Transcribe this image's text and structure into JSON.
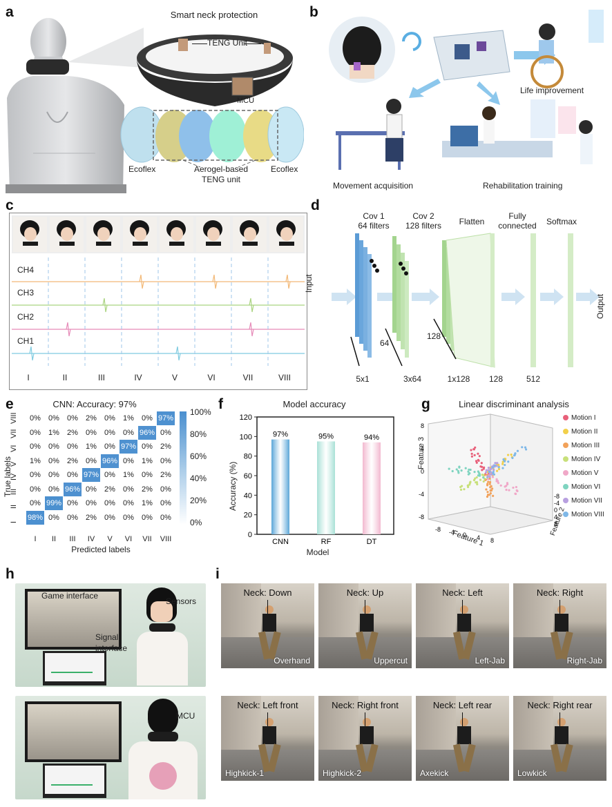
{
  "panel_labels": {
    "a": "a",
    "b": "b",
    "c": "c",
    "d": "d",
    "e": "e",
    "f": "f",
    "g": "g",
    "h": "h",
    "i": "i"
  },
  "panel_a": {
    "title": "Smart neck protection",
    "teng_unit": "TENG Unit",
    "mcu": "MCU",
    "ecoflex_left": "Ecoflex",
    "ecoflex_right": "Ecoflex",
    "aerogel_line1": "Aerogel-based",
    "aerogel_line2": "TENG unit"
  },
  "panel_b": {
    "life": "Life improvement",
    "movement": "Movement acquisition",
    "rehab": "Rehabilitation training"
  },
  "panel_c": {
    "channels": [
      "CH4",
      "CH3",
      "CH2",
      "CH1"
    ],
    "motions": [
      "I",
      "II",
      "III",
      "IV",
      "V",
      "VI",
      "VII",
      "VIII"
    ],
    "colors": [
      "#f2b877",
      "#a9d37f",
      "#e68ab8",
      "#7fcbe0"
    ]
  },
  "panel_d": {
    "input": "Input",
    "output": "Output",
    "layers": [
      "Cov 1",
      "64 filters",
      "Cov 2",
      "128 filters",
      "Flatten",
      "Fully",
      "connected",
      "Softmax"
    ],
    "dims": [
      "5x1",
      "3x64",
      "1x128",
      "128",
      "512"
    ],
    "side_dims": [
      "64",
      "128"
    ]
  },
  "panel_e": {
    "title": "CNN:  Accuracy: 97%",
    "ylabel": "True labels",
    "xlabel": "Predicted labels",
    "labels": [
      "I",
      "II",
      "III",
      "IV",
      "V",
      "VI",
      "VII",
      "VIII"
    ],
    "colorbar": [
      "100%",
      "80%",
      "60%",
      "40%",
      "20%",
      "0%"
    ]
  },
  "panel_f": {
    "title": "Model accuracy",
    "ylabel": "Accuracy (%)",
    "xlabel": "Model",
    "yticks": [
      "0",
      "20",
      "40",
      "60",
      "80",
      "100",
      "120"
    ]
  },
  "panel_g": {
    "title": "Linear discriminant analysis",
    "feature1": "Feature 1",
    "feature2": "Feature 2",
    "feature3": "Feature 3",
    "motions": [
      "Motion I",
      "Motion II",
      "Motion III",
      "Motion IV",
      "Motion V",
      "Motion VI",
      "Motion VII",
      "Motion VIII"
    ],
    "colors": [
      "#e8607a",
      "#f2d04a",
      "#f2a25a",
      "#c8e07a",
      "#f0a8c8",
      "#7fd4c0",
      "#b8a0e0",
      "#7fb8e8"
    ],
    "z_ticks": [
      "8",
      "4",
      "0",
      "-4",
      "-8"
    ],
    "x_ticks": [
      "-8",
      "-4",
      "0",
      "4",
      "8"
    ],
    "y_ticks": [
      "8",
      "4",
      "0",
      "-4",
      "-8"
    ]
  },
  "panel_h": {
    "game": "Game interface",
    "sensors": "Sensors",
    "signal1": "Signal",
    "signal2": "interface",
    "mcu": "MCU"
  },
  "panel_i": {
    "tiles": [
      {
        "top": "Neck: Down",
        "bottom": "Overhand"
      },
      {
        "top": "Neck: Up",
        "bottom": "Uppercut"
      },
      {
        "top": "Neck: Left",
        "bottom": "Left-Jab"
      },
      {
        "top": "Neck: Right",
        "bottom": "Right-Jab"
      },
      {
        "top": "Neck: Left front",
        "bottom": "Highkick-1"
      },
      {
        "top": "Neck: Right front",
        "bottom": "Highkick-2"
      },
      {
        "top": "Neck: Left rear",
        "bottom": "Axekick"
      },
      {
        "top": "Neck: Right rear",
        "bottom": "Lowkick"
      }
    ]
  },
  "chart_data": [
    {
      "type": "heatmap",
      "title": "CNN:  Accuracy: 97%",
      "xlabel": "Predicted labels",
      "ylabel": "True labels",
      "x_categories": [
        "I",
        "II",
        "III",
        "IV",
        "V",
        "VI",
        "VII",
        "VIII"
      ],
      "y_categories_top_to_bottom": [
        "VIII",
        "VII",
        "VI",
        "V",
        "IV",
        "III",
        "II",
        "I"
      ],
      "values_top_to_bottom": [
        [
          "0%",
          "0%",
          "0%",
          "2%",
          "0%",
          "1%",
          "0%",
          "97%"
        ],
        [
          "0%",
          "1%",
          "2%",
          "0%",
          "0%",
          "0%",
          "96%",
          "0%"
        ],
        [
          "0%",
          "0%",
          "0%",
          "1%",
          "0%",
          "97%",
          "0%",
          "2%"
        ],
        [
          "1%",
          "0%",
          "2%",
          "0%",
          "96%",
          "0%",
          "1%",
          "0%"
        ],
        [
          "0%",
          "0%",
          "0%",
          "97%",
          "0%",
          "1%",
          "0%",
          "2%"
        ],
        [
          "0%",
          "0%",
          "96%",
          "0%",
          "2%",
          "0%",
          "2%",
          "0%"
        ],
        [
          "0%",
          "99%",
          "0%",
          "0%",
          "0%",
          "0%",
          "1%",
          "0%"
        ],
        [
          "98%",
          "0%",
          "0%",
          "2%",
          "0%",
          "0%",
          "0%",
          "0%"
        ]
      ],
      "colorbar_range": [
        0,
        100
      ]
    },
    {
      "type": "bar",
      "title": "Model accuracy",
      "categories": [
        "CNN",
        "RF",
        "DT"
      ],
      "values": [
        97,
        95,
        94
      ],
      "value_labels": [
        "97%",
        "95%",
        "94%"
      ],
      "colors": [
        "#5aa6d8",
        "#a8e0d6",
        "#f2b8cf"
      ],
      "xlabel": "Model",
      "ylabel": "Accuracy (%)",
      "ylim": [
        0,
        120
      ]
    }
  ]
}
